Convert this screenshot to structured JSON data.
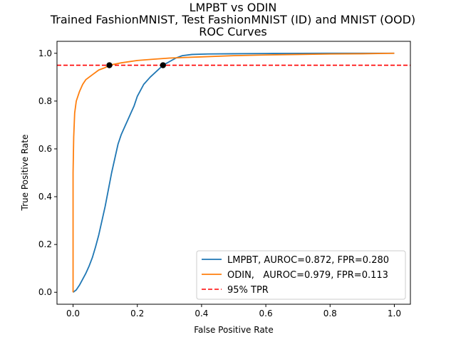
{
  "chart_data": {
    "type": "line",
    "title_lines": [
      "LMPBT vs ODIN",
      "Trained FashionMNIST, Test FashionMNIST (ID) and MNIST (OOD)",
      "ROC Curves"
    ],
    "xlabel": "False Positive Rate",
    "ylabel": "True Positive Rate",
    "xlim": [
      -0.05,
      1.05
    ],
    "ylim": [
      -0.05,
      1.05
    ],
    "xticks": [
      0.0,
      0.2,
      0.4,
      0.6,
      0.8,
      1.0
    ],
    "xtick_labels": [
      "0.0",
      "0.2",
      "0.4",
      "0.6",
      "0.8",
      "1.0"
    ],
    "yticks": [
      0.0,
      0.2,
      0.4,
      0.6,
      0.8,
      1.0
    ],
    "ytick_labels": [
      "0.0",
      "0.2",
      "0.4",
      "0.6",
      "0.8",
      "1.0"
    ],
    "grid": false,
    "legend_position": "lower-right",
    "series": [
      {
        "name": "LMPBT, AUROC=0.872, FPR=0.280",
        "color": "#1f77b4",
        "points": [
          [
            0.0,
            0.0
          ],
          [
            0.005,
            0.005
          ],
          [
            0.01,
            0.01
          ],
          [
            0.02,
            0.03
          ],
          [
            0.03,
            0.055
          ],
          [
            0.04,
            0.08
          ],
          [
            0.05,
            0.11
          ],
          [
            0.06,
            0.145
          ],
          [
            0.07,
            0.19
          ],
          [
            0.08,
            0.24
          ],
          [
            0.09,
            0.3
          ],
          [
            0.1,
            0.36
          ],
          [
            0.11,
            0.43
          ],
          [
            0.12,
            0.5
          ],
          [
            0.13,
            0.56
          ],
          [
            0.14,
            0.62
          ],
          [
            0.15,
            0.66
          ],
          [
            0.16,
            0.69
          ],
          [
            0.17,
            0.72
          ],
          [
            0.18,
            0.75
          ],
          [
            0.19,
            0.78
          ],
          [
            0.2,
            0.82
          ],
          [
            0.22,
            0.87
          ],
          [
            0.24,
            0.9
          ],
          [
            0.26,
            0.925
          ],
          [
            0.28,
            0.95
          ],
          [
            0.3,
            0.965
          ],
          [
            0.32,
            0.98
          ],
          [
            0.34,
            0.99
          ],
          [
            0.37,
            0.995
          ],
          [
            0.42,
            0.997
          ],
          [
            0.5,
            0.998
          ],
          [
            0.6,
            0.999
          ],
          [
            0.8,
            1.0
          ],
          [
            1.0,
            1.0
          ]
        ]
      },
      {
        "name": "ODIN,   AUROC=0.979, FPR=0.113",
        "color": "#ff7f0e",
        "points": [
          [
            0.0,
            0.0
          ],
          [
            0.0,
            0.5
          ],
          [
            0.002,
            0.65
          ],
          [
            0.005,
            0.75
          ],
          [
            0.01,
            0.8
          ],
          [
            0.02,
            0.84
          ],
          [
            0.03,
            0.87
          ],
          [
            0.04,
            0.89
          ],
          [
            0.06,
            0.91
          ],
          [
            0.08,
            0.93
          ],
          [
            0.1,
            0.94
          ],
          [
            0.113,
            0.95
          ],
          [
            0.15,
            0.96
          ],
          [
            0.2,
            0.97
          ],
          [
            0.25,
            0.975
          ],
          [
            0.3,
            0.98
          ],
          [
            0.4,
            0.985
          ],
          [
            0.5,
            0.99
          ],
          [
            0.6,
            0.993
          ],
          [
            0.7,
            0.995
          ],
          [
            0.8,
            0.997
          ],
          [
            0.9,
            0.998
          ],
          [
            1.0,
            1.0
          ]
        ]
      }
    ],
    "reference_line": {
      "name": "95% TPR",
      "y": 0.95,
      "color": "#ff0000",
      "style": "dashed"
    },
    "markers": [
      {
        "x": 0.113,
        "y": 0.95,
        "color": "#000000"
      },
      {
        "x": 0.28,
        "y": 0.95,
        "color": "#000000"
      }
    ]
  }
}
